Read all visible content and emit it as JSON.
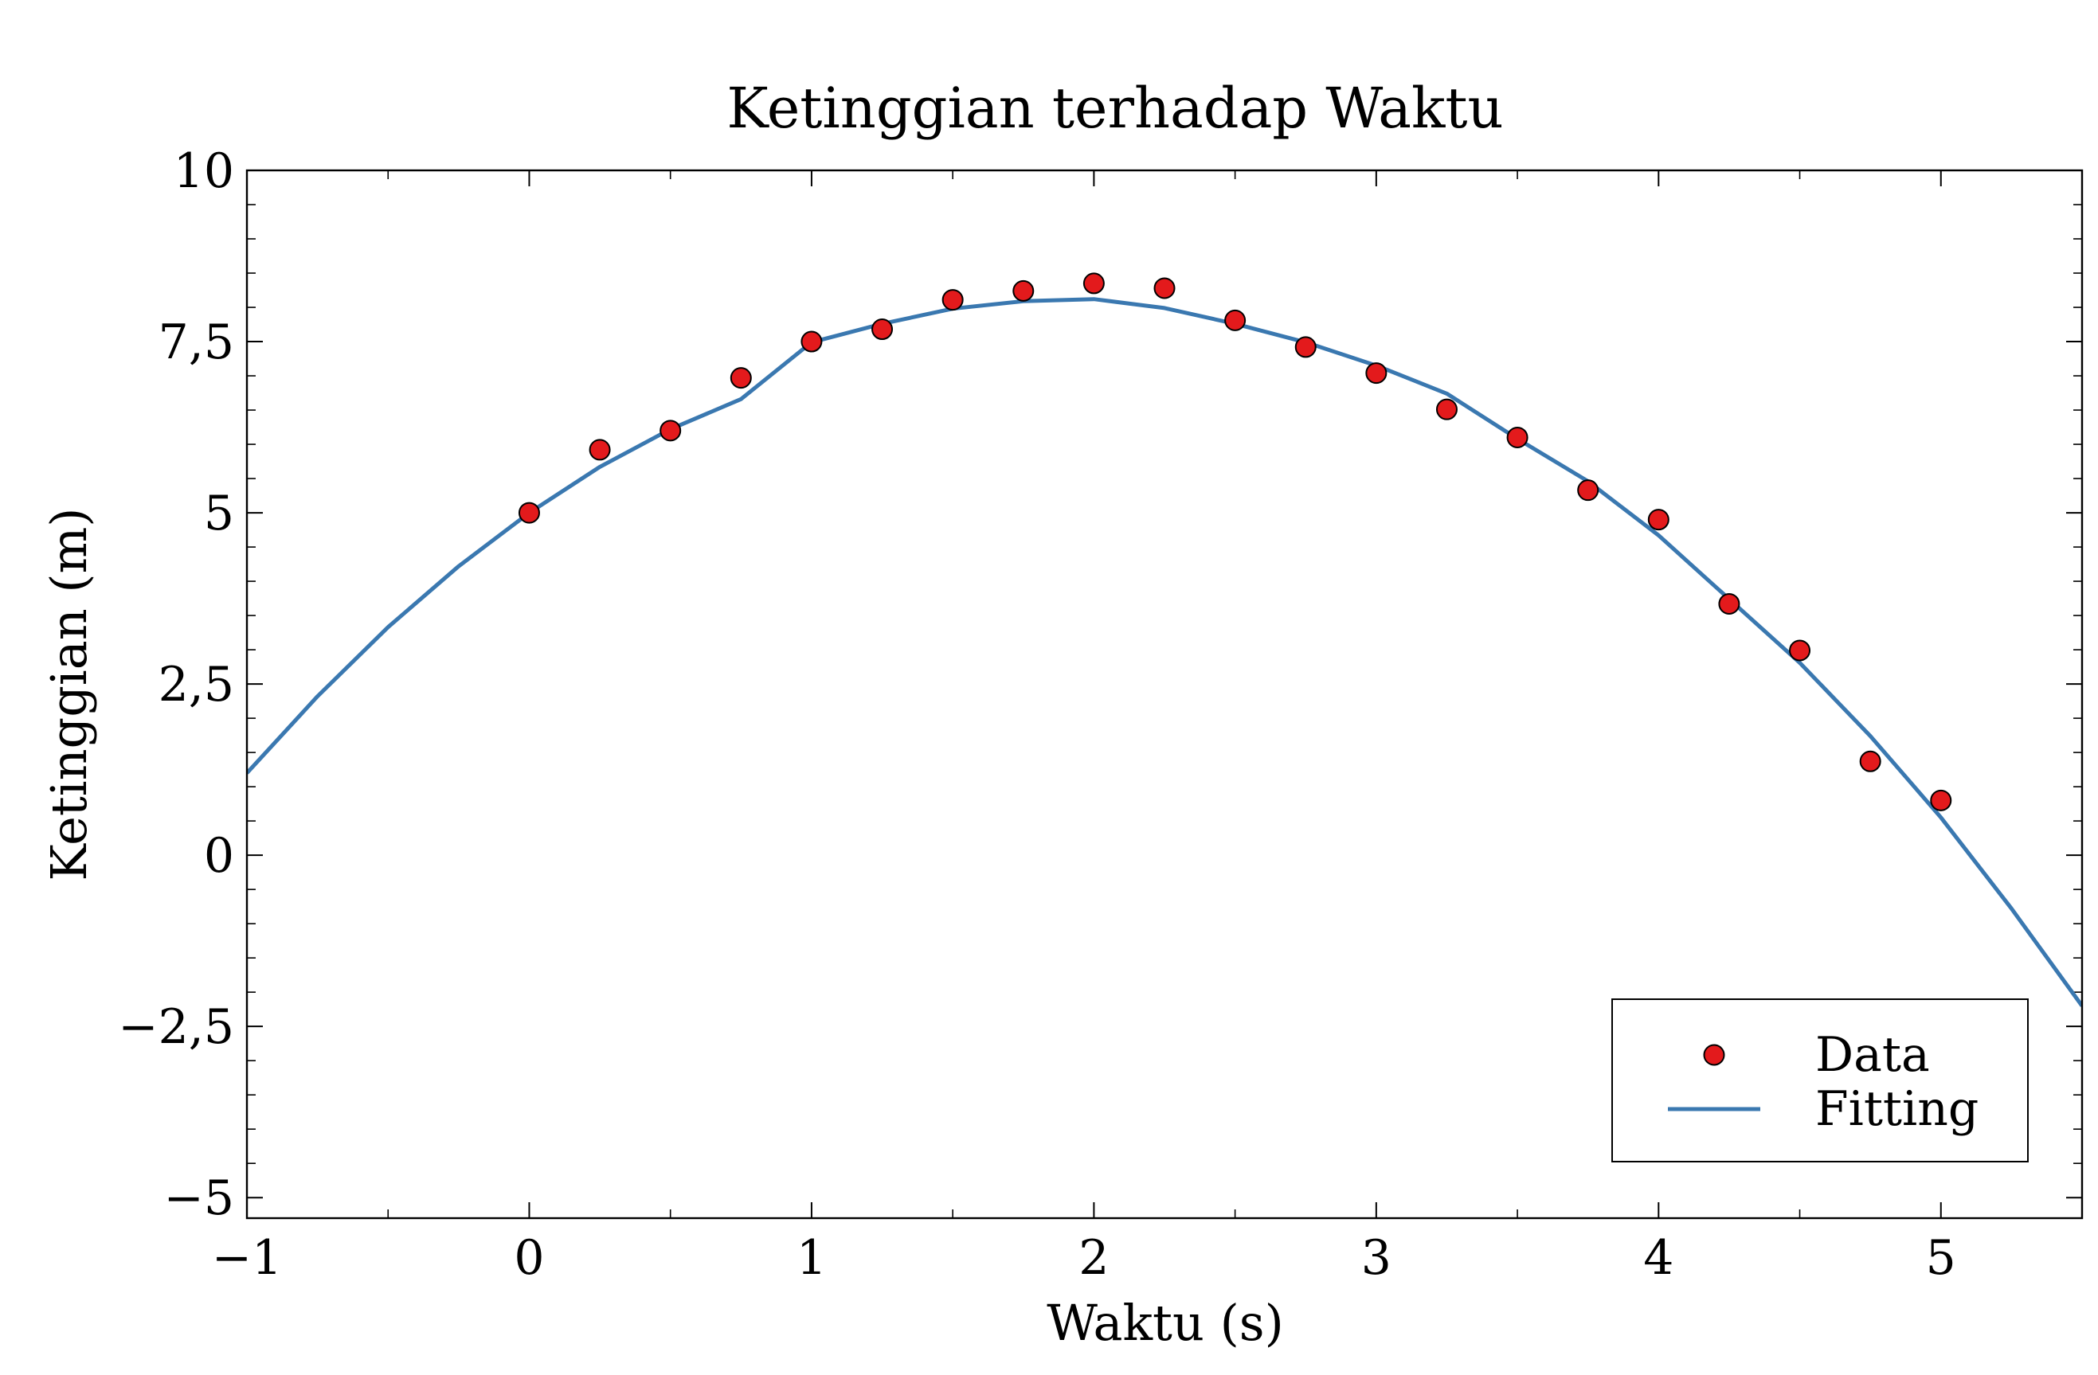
{
  "chart_data": {
    "type": "scatter",
    "title": "Ketinggian terhadap Waktu",
    "xlabel": "Waktu (s)",
    "ylabel": "Ketinggian (m)",
    "xlim": [
      -1,
      5.5
    ],
    "ylim": [
      -5.3,
      10
    ],
    "x_ticks": [
      -1,
      0,
      1,
      2,
      3,
      4,
      5
    ],
    "x_tick_labels": [
      "−1",
      "0",
      "1",
      "2",
      "3",
      "4",
      "5"
    ],
    "y_ticks": [
      -5,
      -2.5,
      0,
      2.5,
      5,
      7.5,
      10
    ],
    "y_tick_labels": [
      "−5",
      "−2,5",
      "0",
      "2,5",
      "5",
      "7,5",
      "10"
    ],
    "grid": false,
    "legend_position": "lower-right",
    "legend": [
      "Data",
      "Fitting"
    ],
    "series": [
      {
        "name": "Data",
        "kind": "scatter",
        "color": "#e31a1c",
        "x": [
          0,
          0.25,
          0.5,
          0.75,
          1.0,
          1.25,
          1.5,
          1.75,
          2.0,
          2.25,
          2.5,
          2.75,
          3.0,
          3.25,
          3.5,
          3.75,
          4.0,
          4.25,
          4.5,
          4.75,
          5.0
        ],
        "y": [
          5.0,
          5.92,
          6.2,
          6.97,
          7.5,
          7.68,
          8.11,
          8.24,
          8.35,
          8.28,
          7.81,
          7.42,
          7.04,
          6.51,
          6.1,
          5.33,
          4.9,
          3.67,
          2.99,
          1.37,
          0.8
        ]
      },
      {
        "name": "Fitting",
        "kind": "line",
        "color": "#3a78b0",
        "x": [
          -1.0,
          -0.75,
          -0.5,
          -0.25,
          0.0,
          0.25,
          0.5,
          0.75,
          1.0,
          1.25,
          1.5,
          1.75,
          2.0,
          2.25,
          2.5,
          2.75,
          3.0,
          3.25,
          3.5,
          3.75,
          4.0,
          4.25,
          4.5,
          4.75,
          5.0,
          5.25,
          5.5
        ],
        "y": [
          1.2,
          2.32,
          3.33,
          4.22,
          5.0,
          5.67,
          6.22,
          6.66,
          7.49,
          7.76,
          7.98,
          8.09,
          8.12,
          7.99,
          7.76,
          7.49,
          7.15,
          6.74,
          6.08,
          5.46,
          4.67,
          3.74,
          2.81,
          1.74,
          0.55,
          -0.78,
          -2.2
        ]
      }
    ]
  }
}
